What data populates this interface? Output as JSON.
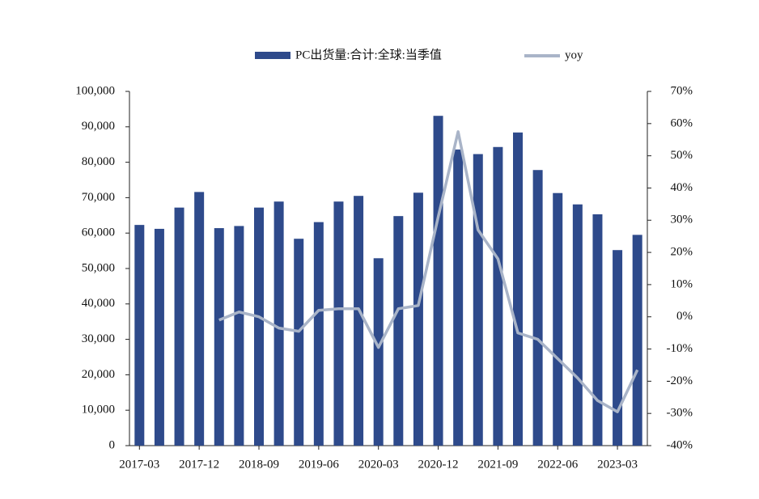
{
  "chart_data": {
    "type": "bar-line",
    "categories": [
      "2017-03",
      null,
      null,
      "2017-12",
      null,
      null,
      "2018-09",
      null,
      null,
      "2019-06",
      null,
      null,
      "2020-03",
      null,
      null,
      "2020-12",
      null,
      null,
      "2021-09",
      null,
      null,
      "2022-06",
      null,
      null,
      "2023-03",
      null
    ],
    "series": [
      {
        "name": "PC出货量:合计:全球:当季值",
        "type": "bar",
        "color": "#2e4a8b",
        "values": [
          62300,
          61200,
          67200,
          71600,
          61400,
          62000,
          67200,
          68900,
          58400,
          63100,
          68900,
          70500,
          52900,
          64800,
          71400,
          93100,
          83600,
          82300,
          84300,
          88400,
          77800,
          71300,
          68100,
          65300,
          55200,
          59500
        ]
      },
      {
        "name": "yoy",
        "type": "line",
        "axis": "y2",
        "color": "#a9b4c8",
        "values": [
          null,
          null,
          null,
          null,
          -1.0,
          1.5,
          0.0,
          -3.5,
          -4.5,
          2.0,
          2.5,
          2.5,
          -9.5,
          2.5,
          3.5,
          31,
          57.5,
          27,
          18,
          -5,
          -7,
          -13,
          -19,
          -26,
          -29.5,
          -16.5
        ]
      }
    ],
    "ylim": [
      0,
      100000
    ],
    "yticks": [
      0,
      {
        "value": 10000,
        "label": "10,000"
      },
      {
        "value": 20000,
        "label": "20,000"
      },
      {
        "value": 30000,
        "label": "30,000"
      },
      {
        "value": 40000,
        "label": "40,000"
      },
      {
        "value": 50000,
        "label": "50,000"
      },
      {
        "value": 60000,
        "label": "60,000"
      },
      {
        "value": 70000,
        "label": "70,000"
      },
      {
        "value": 80000,
        "label": "80,000"
      },
      {
        "value": 90000,
        "label": "90,000"
      },
      {
        "value": 100000,
        "label": "100,000"
      }
    ],
    "y2lim": [
      -40,
      70
    ],
    "y2ticks": [
      {
        "value": -40,
        "label": "-40%"
      },
      {
        "value": -30,
        "label": "-30%"
      },
      {
        "value": -20,
        "label": "-20%"
      },
      {
        "value": -10,
        "label": "-10%"
      },
      {
        "value": 0,
        "label": "0%"
      },
      {
        "value": 10,
        "label": "10%"
      },
      {
        "value": 20,
        "label": "20%"
      },
      {
        "value": 30,
        "label": "30%"
      },
      {
        "value": 40,
        "label": "40%"
      },
      {
        "value": 50,
        "label": "50%"
      },
      {
        "value": 60,
        "label": "60%"
      },
      {
        "value": 70,
        "label": "70%"
      }
    ],
    "legend": "top"
  }
}
